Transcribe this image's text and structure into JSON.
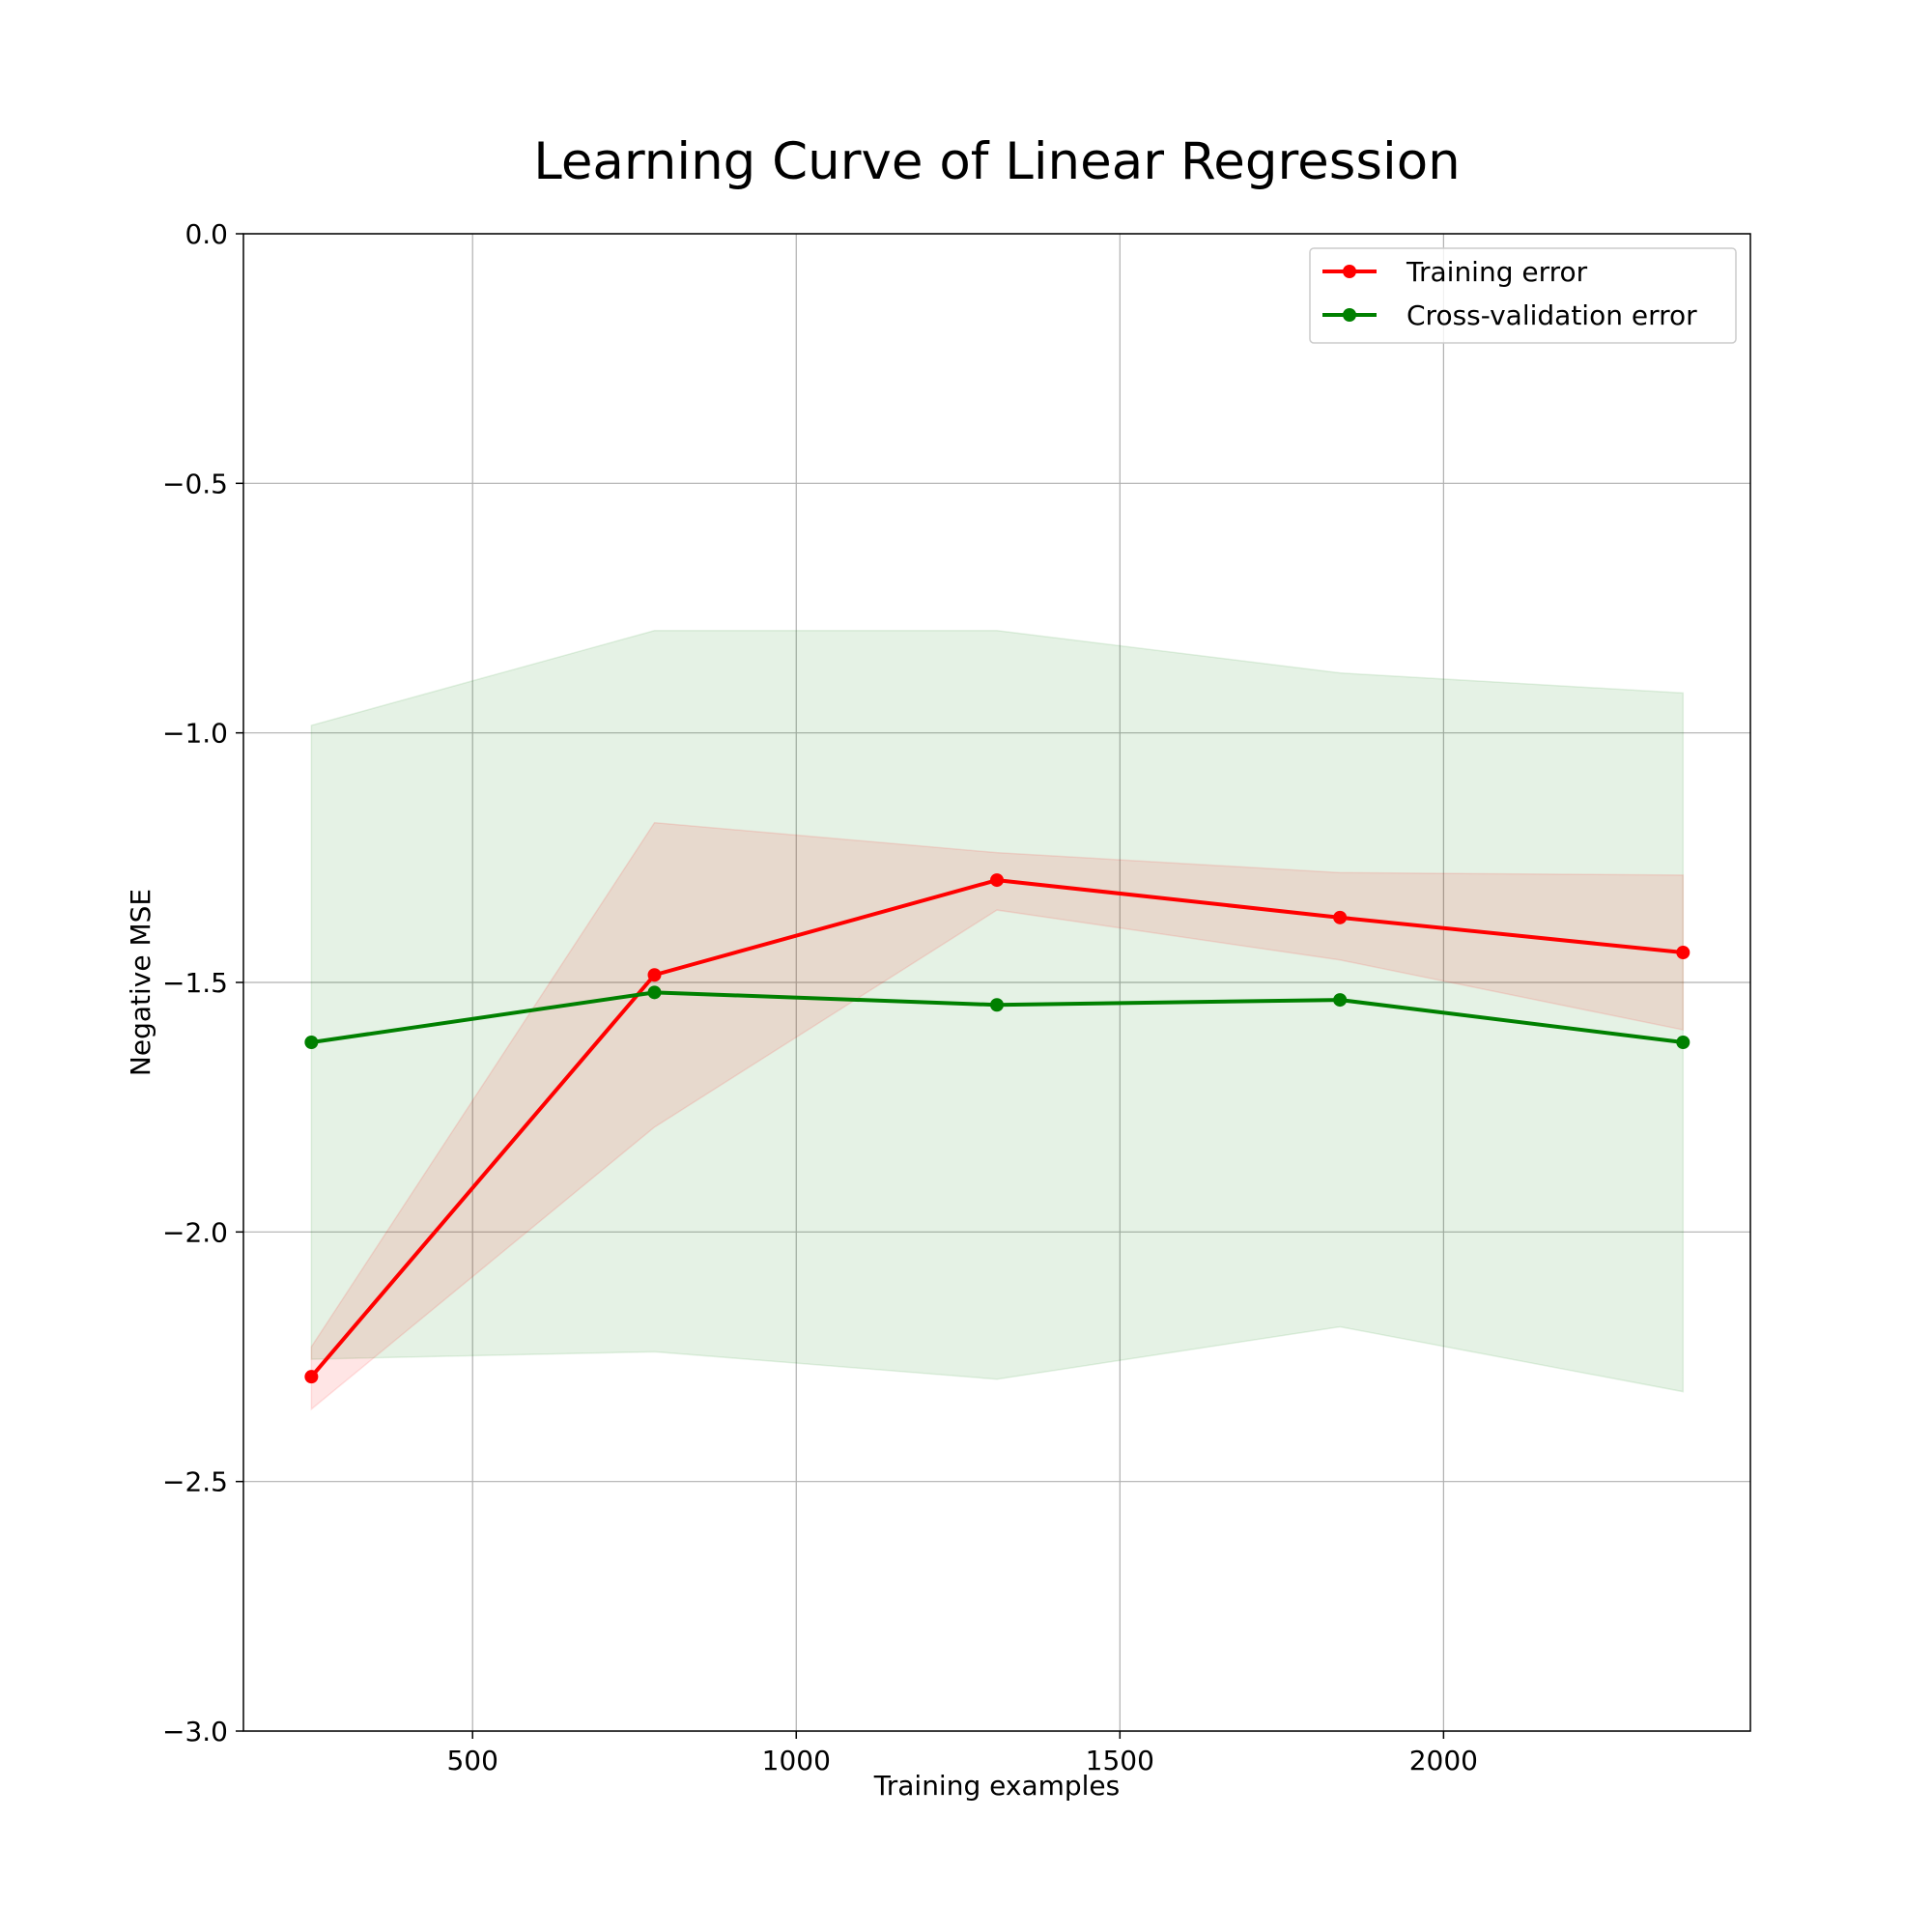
{
  "chart_data": {
    "type": "line",
    "title": "Learning Curve of Linear Regression",
    "xlabel": "Training examples",
    "ylabel": "Negative MSE",
    "xlim": [
      146,
      2474
    ],
    "ylim": [
      -3.0,
      0.0
    ],
    "xticks": [
      500,
      1000,
      1500,
      2000
    ],
    "xtick_labels": [
      "500",
      "1000",
      "1500",
      "2000"
    ],
    "yticks": [
      0.0,
      -0.5,
      -1.0,
      -1.5,
      -2.0,
      -2.5,
      -3.0
    ],
    "ytick_labels": [
      "0.0",
      "−0.5",
      "−1.0",
      "−1.5",
      "−2.0",
      "−2.5",
      "−3.0"
    ],
    "grid": true,
    "legend_position": "top-right",
    "x": [
      251,
      781,
      1310,
      1840,
      2370
    ],
    "series": [
      {
        "name": "Training error",
        "color": "#ff0000",
        "band_color": "#ff0000",
        "values": [
          -2.29,
          -1.485,
          -1.295,
          -1.37,
          -1.44
        ],
        "band_upper": [
          -2.23,
          -1.18,
          -1.24,
          -1.28,
          -1.285
        ],
        "band_lower": [
          -2.355,
          -1.79,
          -1.355,
          -1.455,
          -1.595
        ]
      },
      {
        "name": "Cross-validation error",
        "color": "#008000",
        "band_color": "#008000",
        "values": [
          -1.62,
          -1.52,
          -1.545,
          -1.535,
          -1.62
        ],
        "band_upper": [
          -0.985,
          -0.795,
          -0.795,
          -0.88,
          -0.92
        ],
        "band_lower": [
          -2.255,
          -2.24,
          -2.295,
          -2.19,
          -2.32
        ]
      }
    ]
  }
}
